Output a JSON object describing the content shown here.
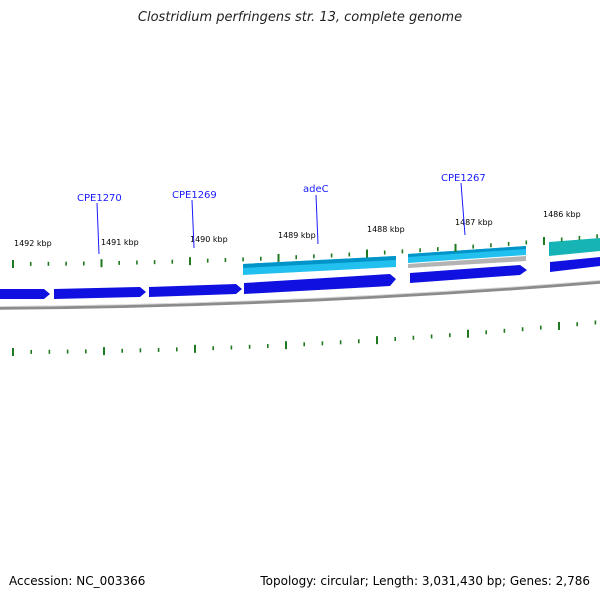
{
  "title": "Clostridium perfringens str. 13, complete genome",
  "footer": {
    "accession": "Accession: NC_003366",
    "summary": "Topology: circular; Length: 3,031,430 bp; Genes: 2,786"
  },
  "colors": {
    "gene_forward": "#1010e0",
    "gene_reverse_dark": "#0094c8",
    "gene_reverse_light": "#22c0ee",
    "gene_teal": "#16b4b4",
    "grey_gene": "#b4b4b4",
    "backbone": "#8c8c8c",
    "tick": "#1f7a1f",
    "gene_label": "#1a1aff"
  },
  "scale_labels": [
    "1492 kbp",
    "1491 kbp",
    "1490 kbp",
    "1489 kbp",
    "1488 kbp",
    "1487 kbp",
    "1486 kbp"
  ],
  "gene_labels": [
    "CPE1270",
    "CPE1269",
    "adeC",
    "CPE1267"
  ]
}
